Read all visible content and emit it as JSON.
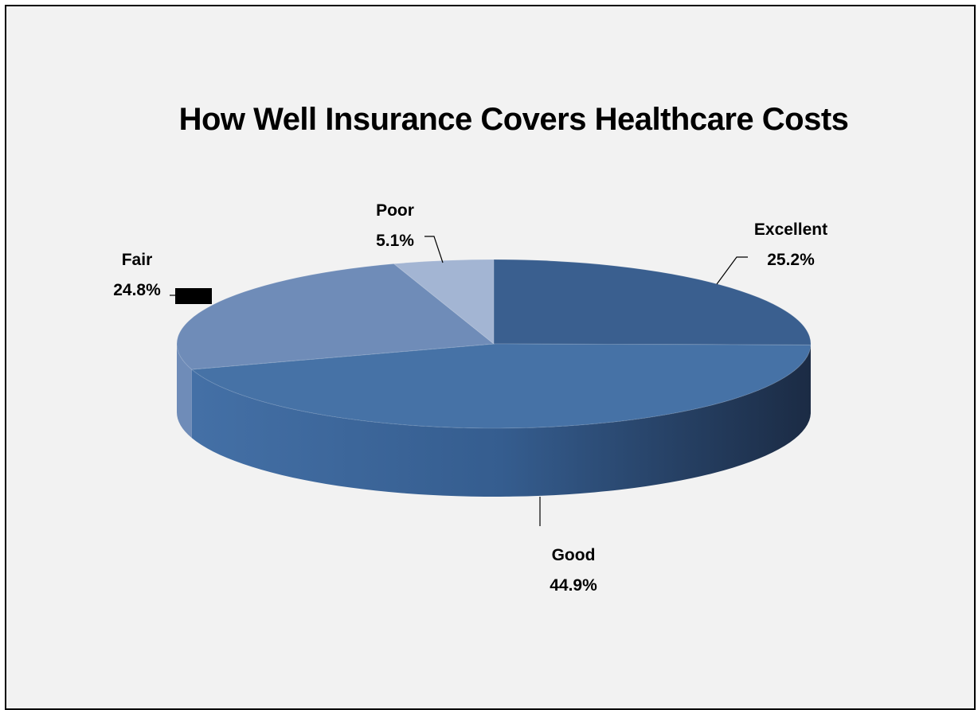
{
  "chart_data": {
    "type": "pie",
    "title": "How Well Insurance Covers Healthcare Costs",
    "three_d": true,
    "slices": [
      {
        "label": "Excellent",
        "value": 25.2,
        "display": "25.2%",
        "color": "#3a5f8f"
      },
      {
        "label": "Good",
        "value": 44.9,
        "display": "44.9%",
        "color": "#4672a6"
      },
      {
        "label": "Fair",
        "value": 24.8,
        "display": "24.8%",
        "color": "#6f8cb8"
      },
      {
        "label": "Poor",
        "value": 5.1,
        "display": "5.1%",
        "color": "#a3b5d3"
      }
    ],
    "legend": "none"
  }
}
